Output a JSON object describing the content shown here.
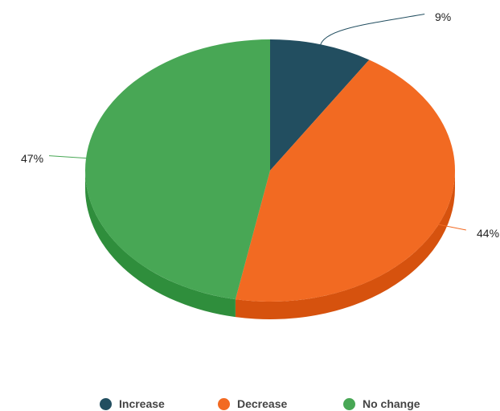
{
  "chart_data": {
    "type": "pie",
    "style": "3d",
    "categories": [
      "Increase",
      "Decrease",
      "No change"
    ],
    "values": [
      9,
      44,
      47
    ],
    "labels": [
      "9%",
      "44%",
      "47%"
    ],
    "colors": [
      "#224E60",
      "#F26A22",
      "#48A755"
    ],
    "side_colors": [
      "#1A3E4D",
      "#D6520E",
      "#2F8E3C"
    ],
    "legend_placement": "bottom",
    "title": ""
  },
  "legend": [
    {
      "label": "Increase",
      "color": "#224E60"
    },
    {
      "label": "Decrease",
      "color": "#F26A22"
    },
    {
      "label": "No change",
      "color": "#48A755"
    }
  ]
}
